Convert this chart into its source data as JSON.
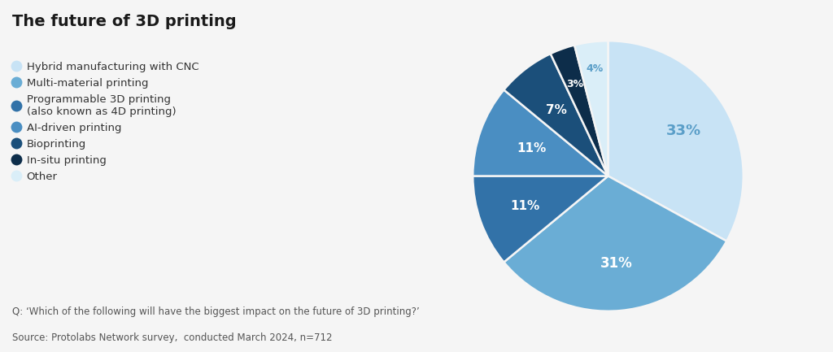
{
  "title": "The future of 3D printing",
  "slices": [
    33,
    31,
    11,
    11,
    7,
    3,
    4
  ],
  "pct_labels": [
    "33%",
    "31%",
    "11%",
    "11%",
    "7%",
    "3%",
    "4%"
  ],
  "colors": [
    "#c8e3f5",
    "#6aadd5",
    "#3272a8",
    "#4a8ec2",
    "#1b4f7a",
    "#0d2d4a",
    "#daeef8"
  ],
  "legend_labels": [
    "Hybrid manufacturing with CNC",
    "Multi-material printing",
    "Programmable 3D printing\n(also known as 4D printing)",
    "AI-driven printing",
    "Bioprinting",
    "In-situ printing",
    "Other"
  ],
  "legend_colors": [
    "#c8e3f5",
    "#6aadd5",
    "#3272a8",
    "#4a8ec2",
    "#1b4f7a",
    "#0d2d4a",
    "#daeef8"
  ],
  "footnote_line1": "Q: ‘Which of the following will have the biggest impact on the future of 3D printing?’",
  "footnote_line2": "Source: Protolabs Network survey,  conducted March 2024, n=712",
  "background_color": "#f5f5f5",
  "label_colors": [
    "#5a9ec8",
    "white",
    "white",
    "white",
    "white",
    "white",
    "#5a9ec8"
  ]
}
